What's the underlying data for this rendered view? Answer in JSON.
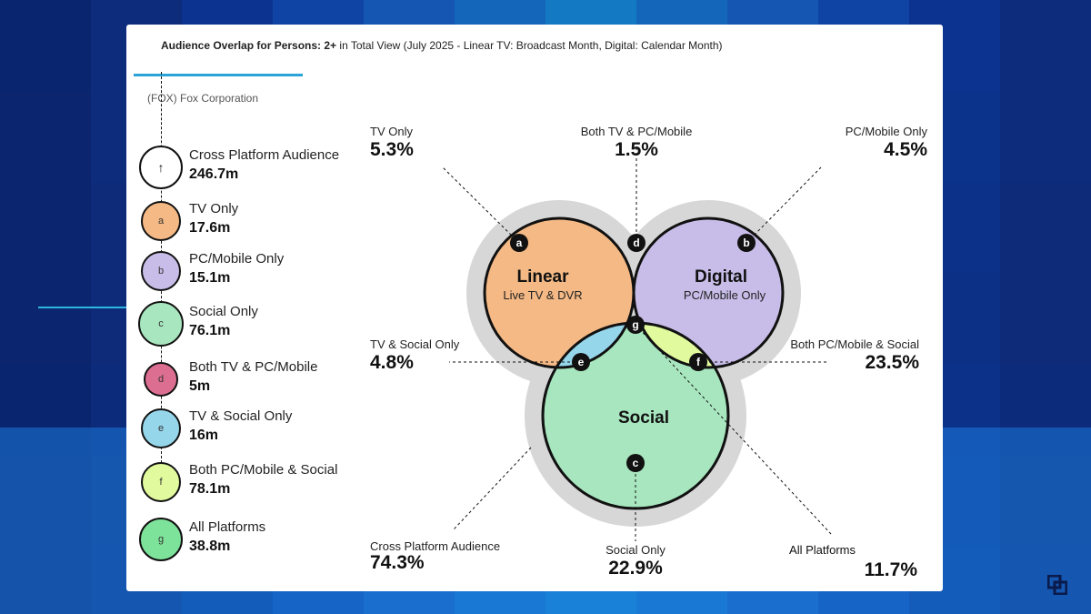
{
  "chart_data": {
    "type": "venn",
    "title_bold": "Audience Overlap for Persons: 2+",
    "title_rest": " in Total View (July 2025 - Linear TV: Broadcast Month, Digital: Calendar Month)",
    "company": "(FOX) Fox Corporation",
    "sets": [
      {
        "name": "Linear",
        "sub": "Live TV & DVR",
        "color": "#f5b985"
      },
      {
        "name": "Digital",
        "sub": "PC/Mobile Only",
        "color": "#c8bde8"
      },
      {
        "name": "Social",
        "sub": "",
        "color": "#a8e6bf"
      }
    ],
    "legend": [
      {
        "letter": "",
        "name": "Cross Platform Audience",
        "value": "246.7m",
        "color": "#ffffff"
      },
      {
        "letter": "a",
        "name": "TV Only",
        "value": "17.6m",
        "color": "#f5b985"
      },
      {
        "letter": "b",
        "name": "PC/Mobile Only",
        "value": "15.1m",
        "color": "#c8bde8"
      },
      {
        "letter": "c",
        "name": "Social Only",
        "value": "76.1m",
        "color": "#a8e6bf"
      },
      {
        "letter": "d",
        "name": "Both TV & PC/Mobile",
        "value": "5m",
        "color": "#dc6e92"
      },
      {
        "letter": "e",
        "name": "TV & Social Only",
        "value": "16m",
        "color": "#96d6ea"
      },
      {
        "letter": "f",
        "name": "Both PC/Mobile & Social",
        "value": "78.1m",
        "color": "#e1fa9e"
      },
      {
        "letter": "g",
        "name": "All Platforms",
        "value": "38.8m",
        "color": "#7ee39a"
      }
    ],
    "annotations": [
      {
        "id": "a",
        "label": "TV Only",
        "value": "5.3%"
      },
      {
        "id": "d",
        "label": "Both TV & PC/Mobile",
        "value": "1.5%"
      },
      {
        "id": "b",
        "label": "PC/Mobile Only",
        "value": "4.5%"
      },
      {
        "id": "e",
        "label": "TV & Social Only",
        "value": "4.8%"
      },
      {
        "id": "f",
        "label": "Both PC/Mobile & Social",
        "value": "23.5%"
      },
      {
        "id": "cross",
        "label": "Cross Platform Audience",
        "value": "74.3%"
      },
      {
        "id": "c",
        "label": "Social Only",
        "value": "22.9%"
      },
      {
        "id": "g",
        "label": "All Platforms",
        "value": "11.7%"
      }
    ],
    "colors": {
      "outline": "#111111",
      "halo": "#d7d7d7",
      "marker": "#111111"
    }
  }
}
